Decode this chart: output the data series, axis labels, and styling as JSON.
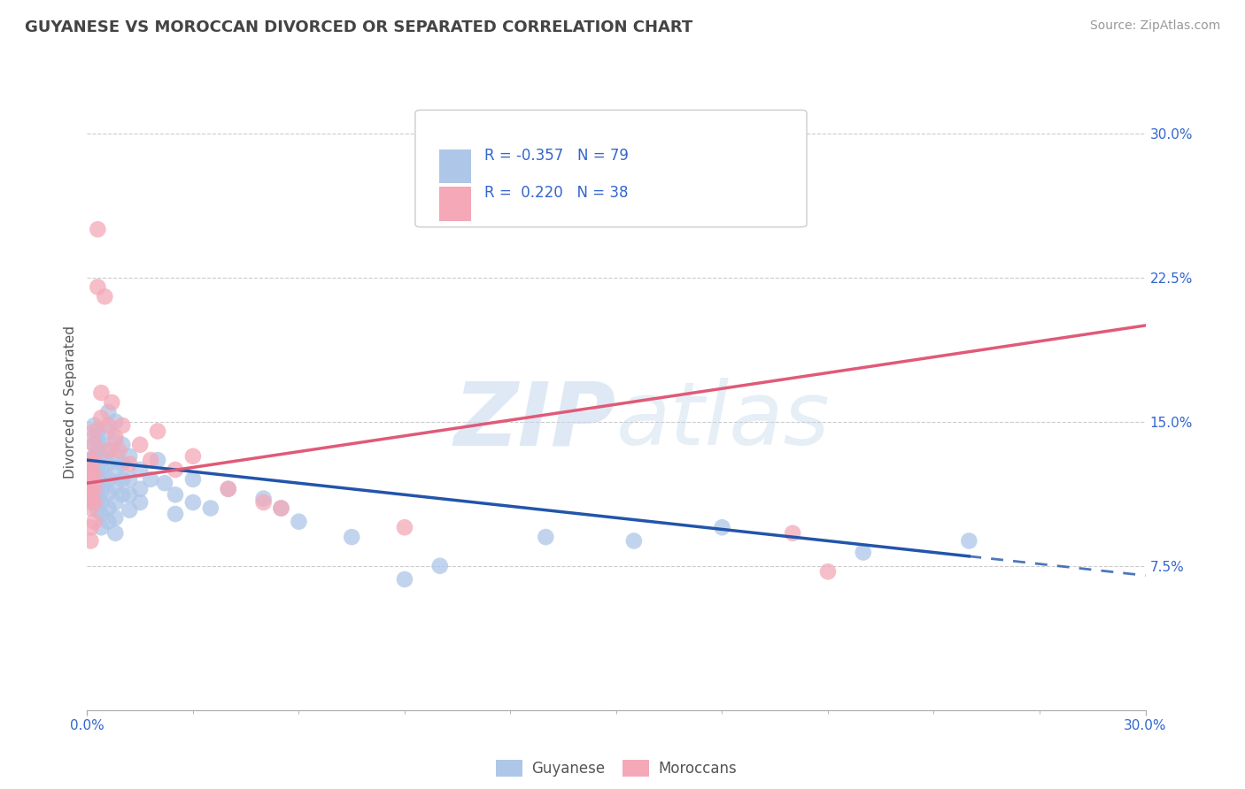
{
  "title": "GUYANESE VS MOROCCAN DIVORCED OR SEPARATED CORRELATION CHART",
  "source": "Source: ZipAtlas.com",
  "ylabel": "Divorced or Separated",
  "x_min": 0.0,
  "x_max": 0.3,
  "y_min": 0.0,
  "y_max": 0.32,
  "y_ticks": [
    0.075,
    0.15,
    0.225,
    0.3
  ],
  "y_tick_labels": [
    "7.5%",
    "15.0%",
    "22.5%",
    "30.0%"
  ],
  "guyanese_color": "#aec6e8",
  "moroccan_color": "#f4a8b8",
  "guyanese_line_color": "#2255aa",
  "moroccan_line_color": "#e05a78",
  "R_guyanese": -0.357,
  "N_guyanese": 79,
  "R_moroccan": 0.22,
  "N_moroccan": 38,
  "watermark_zip": "ZIP",
  "watermark_atlas": "atlas",
  "guyanese_points": [
    [
      0.001,
      0.13
    ],
    [
      0.001,
      0.128
    ],
    [
      0.001,
      0.125
    ],
    [
      0.001,
      0.122
    ],
    [
      0.001,
      0.118
    ],
    [
      0.001,
      0.115
    ],
    [
      0.001,
      0.112
    ],
    [
      0.001,
      0.108
    ],
    [
      0.002,
      0.148
    ],
    [
      0.002,
      0.142
    ],
    [
      0.002,
      0.138
    ],
    [
      0.002,
      0.132
    ],
    [
      0.002,
      0.126
    ],
    [
      0.002,
      0.12
    ],
    [
      0.002,
      0.114
    ],
    [
      0.002,
      0.108
    ],
    [
      0.003,
      0.145
    ],
    [
      0.003,
      0.14
    ],
    [
      0.003,
      0.135
    ],
    [
      0.003,
      0.128
    ],
    [
      0.003,
      0.122
    ],
    [
      0.003,
      0.116
    ],
    [
      0.003,
      0.11
    ],
    [
      0.003,
      0.104
    ],
    [
      0.004,
      0.138
    ],
    [
      0.004,
      0.132
    ],
    [
      0.004,
      0.126
    ],
    [
      0.004,
      0.12
    ],
    [
      0.004,
      0.114
    ],
    [
      0.004,
      0.108
    ],
    [
      0.004,
      0.102
    ],
    [
      0.004,
      0.095
    ],
    [
      0.006,
      0.155
    ],
    [
      0.006,
      0.145
    ],
    [
      0.006,
      0.135
    ],
    [
      0.006,
      0.128
    ],
    [
      0.006,
      0.12
    ],
    [
      0.006,
      0.113
    ],
    [
      0.006,
      0.105
    ],
    [
      0.006,
      0.098
    ],
    [
      0.008,
      0.15
    ],
    [
      0.008,
      0.14
    ],
    [
      0.008,
      0.132
    ],
    [
      0.008,
      0.124
    ],
    [
      0.008,
      0.116
    ],
    [
      0.008,
      0.108
    ],
    [
      0.008,
      0.1
    ],
    [
      0.008,
      0.092
    ],
    [
      0.01,
      0.138
    ],
    [
      0.01,
      0.128
    ],
    [
      0.01,
      0.12
    ],
    [
      0.01,
      0.112
    ],
    [
      0.012,
      0.132
    ],
    [
      0.012,
      0.12
    ],
    [
      0.012,
      0.112
    ],
    [
      0.012,
      0.104
    ],
    [
      0.015,
      0.125
    ],
    [
      0.015,
      0.115
    ],
    [
      0.015,
      0.108
    ],
    [
      0.018,
      0.12
    ],
    [
      0.02,
      0.13
    ],
    [
      0.022,
      0.118
    ],
    [
      0.025,
      0.112
    ],
    [
      0.025,
      0.102
    ],
    [
      0.03,
      0.12
    ],
    [
      0.03,
      0.108
    ],
    [
      0.035,
      0.105
    ],
    [
      0.04,
      0.115
    ],
    [
      0.05,
      0.11
    ],
    [
      0.055,
      0.105
    ],
    [
      0.06,
      0.098
    ],
    [
      0.075,
      0.09
    ],
    [
      0.09,
      0.068
    ],
    [
      0.1,
      0.075
    ],
    [
      0.13,
      0.09
    ],
    [
      0.155,
      0.088
    ],
    [
      0.18,
      0.095
    ],
    [
      0.22,
      0.082
    ],
    [
      0.25,
      0.088
    ]
  ],
  "moroccan_points": [
    [
      0.001,
      0.13
    ],
    [
      0.001,
      0.125
    ],
    [
      0.001,
      0.12
    ],
    [
      0.001,
      0.115
    ],
    [
      0.001,
      0.11
    ],
    [
      0.001,
      0.105
    ],
    [
      0.001,
      0.095
    ],
    [
      0.001,
      0.088
    ],
    [
      0.002,
      0.145
    ],
    [
      0.002,
      0.138
    ],
    [
      0.002,
      0.13
    ],
    [
      0.002,
      0.122
    ],
    [
      0.002,
      0.115
    ],
    [
      0.002,
      0.108
    ],
    [
      0.002,
      0.098
    ],
    [
      0.003,
      0.25
    ],
    [
      0.003,
      0.22
    ],
    [
      0.004,
      0.165
    ],
    [
      0.004,
      0.152
    ],
    [
      0.005,
      0.215
    ],
    [
      0.006,
      0.148
    ],
    [
      0.006,
      0.135
    ],
    [
      0.007,
      0.16
    ],
    [
      0.008,
      0.142
    ],
    [
      0.009,
      0.135
    ],
    [
      0.01,
      0.148
    ],
    [
      0.012,
      0.128
    ],
    [
      0.015,
      0.138
    ],
    [
      0.018,
      0.13
    ],
    [
      0.02,
      0.145
    ],
    [
      0.025,
      0.125
    ],
    [
      0.03,
      0.132
    ],
    [
      0.04,
      0.115
    ],
    [
      0.05,
      0.108
    ],
    [
      0.055,
      0.105
    ],
    [
      0.09,
      0.095
    ],
    [
      0.2,
      0.092
    ],
    [
      0.21,
      0.072
    ]
  ]
}
